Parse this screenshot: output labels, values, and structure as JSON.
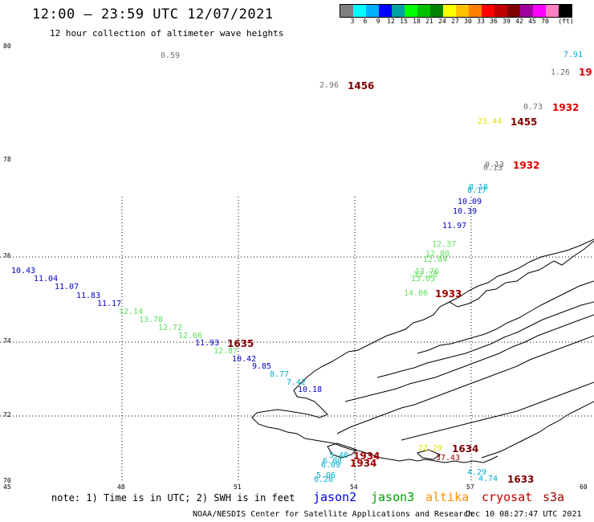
{
  "header": {
    "title": "12:00 — 23:59 UTC 12/07/2021",
    "subtitle": "12 hour collection of altimeter wave heights"
  },
  "colorbar": {
    "colors": [
      "#808080",
      "#00ffff",
      "#00b0ff",
      "#0000ff",
      "#00a0a0",
      "#00ff00",
      "#00c000",
      "#008000",
      "#ffff00",
      "#ffc000",
      "#ff8000",
      "#ff0000",
      "#c00000",
      "#800000",
      "#a000a0",
      "#ff00ff",
      "#ff80c0",
      "#000000"
    ],
    "labels": [
      "3",
      "6",
      "9",
      "12",
      "15",
      "18",
      "21",
      "24",
      "27",
      "30",
      "33",
      "36",
      "39",
      "42",
      "45",
      "70",
      "(ft)"
    ]
  },
  "axes": {
    "lat_labels": [
      "80",
      "78",
      "76",
      "74",
      "72",
      "70"
    ],
    "lon_labels": [
      "45",
      "48",
      "51",
      "54",
      "57",
      "60"
    ]
  },
  "measurements": [
    {
      "text": "0.59",
      "color": "#707070"
    },
    {
      "text": "7.91",
      "color": "#00b0d0"
    },
    {
      "text": "1.26",
      "color": "#707070"
    },
    {
      "text": "2.96",
      "color": "#707070"
    },
    {
      "text": "0.73",
      "color": "#707070"
    },
    {
      "text": "21.44",
      "color": "#e0e000"
    },
    {
      "text": "0.13",
      "color": "#707070"
    },
    {
      "text": "0.13",
      "color": "#707070"
    },
    {
      "text": "8.18",
      "color": "#00b0d0"
    },
    {
      "text": "8.17",
      "color": "#00b0d0"
    },
    {
      "text": "10.09",
      "color": "#0000c0"
    },
    {
      "text": "10.39",
      "color": "#0000c0"
    },
    {
      "text": "11.97",
      "color": "#0000c0"
    },
    {
      "text": "12.37",
      "color": "#60e060"
    },
    {
      "text": "12.80",
      "color": "#60e060"
    },
    {
      "text": "12.84",
      "color": "#60e060"
    },
    {
      "text": "13.76",
      "color": "#60e060"
    },
    {
      "text": "13.28",
      "color": "#60e060"
    },
    {
      "text": "13.05",
      "color": "#60e060"
    },
    {
      "text": "14.06",
      "color": "#60e060"
    },
    {
      "text": "10.43",
      "color": "#0000c0"
    },
    {
      "text": "11.04",
      "color": "#0000c0"
    },
    {
      "text": "11.07",
      "color": "#0000c0"
    },
    {
      "text": "11.83",
      "color": "#0000c0"
    },
    {
      "text": "11.17",
      "color": "#0000c0"
    },
    {
      "text": "12.14",
      "color": "#60e060"
    },
    {
      "text": "13.78",
      "color": "#60e060"
    },
    {
      "text": "12.72",
      "color": "#60e060"
    },
    {
      "text": "12.66",
      "color": "#60e060"
    },
    {
      "text": "11.93",
      "color": "#0000c0"
    },
    {
      "text": "12.87",
      "color": "#60e060"
    },
    {
      "text": "10.42",
      "color": "#0000c0"
    },
    {
      "text": "9.85",
      "color": "#0000c0"
    },
    {
      "text": "8.77",
      "color": "#00b0d0"
    },
    {
      "text": "7.42",
      "color": "#00b0d0"
    },
    {
      "text": "10.18",
      "color": "#0000c0"
    },
    {
      "text": "5.40",
      "color": "#00b0d0"
    },
    {
      "text": "6.08",
      "color": "#00b0d0"
    },
    {
      "text": "6.09",
      "color": "#00b0d0"
    },
    {
      "text": "5.06",
      "color": "#00b0d0"
    },
    {
      "text": "6.28",
      "color": "#00b0d0"
    },
    {
      "text": "22.29",
      "color": "#e0e000"
    },
    {
      "text": "37.43",
      "color": "#a00000"
    },
    {
      "text": "4.29",
      "color": "#00b0d0"
    },
    {
      "text": "4.74",
      "color": "#00b0d0"
    }
  ],
  "time_labels": [
    {
      "text": "1456",
      "color": "#800000"
    },
    {
      "text": "1932",
      "color": "#e00000"
    },
    {
      "text": "1455",
      "color": "#800000"
    },
    {
      "text": "1932",
      "color": "#e00000"
    },
    {
      "text": "19",
      "color": "#e00000"
    },
    {
      "text": "1933",
      "color": "#a00000"
    },
    {
      "text": "1635",
      "color": "#800000"
    },
    {
      "text": "1934",
      "color": "#a00000"
    },
    {
      "text": "1934",
      "color": "#a00000"
    },
    {
      "text": "1634",
      "color": "#800000"
    },
    {
      "text": "1633",
      "color": "#800000"
    }
  ],
  "footer": {
    "note": "note: 1) Time is in UTC; 2) SWH is in feet",
    "legend": [
      {
        "text": "jason2",
        "color": "#0000e0"
      },
      {
        "text": "jason3",
        "color": "#00a000"
      },
      {
        "text": "altika",
        "color": "#ff9000"
      },
      {
        "text": "cryosat",
        "color": "#c00000"
      },
      {
        "text": "s3a",
        "color": "#a00000"
      }
    ],
    "credit": "NOAA/NESDIS Center for Satellite Applications and Research",
    "timestamp": "Dec 10 08:27:47 UTC 2021"
  }
}
